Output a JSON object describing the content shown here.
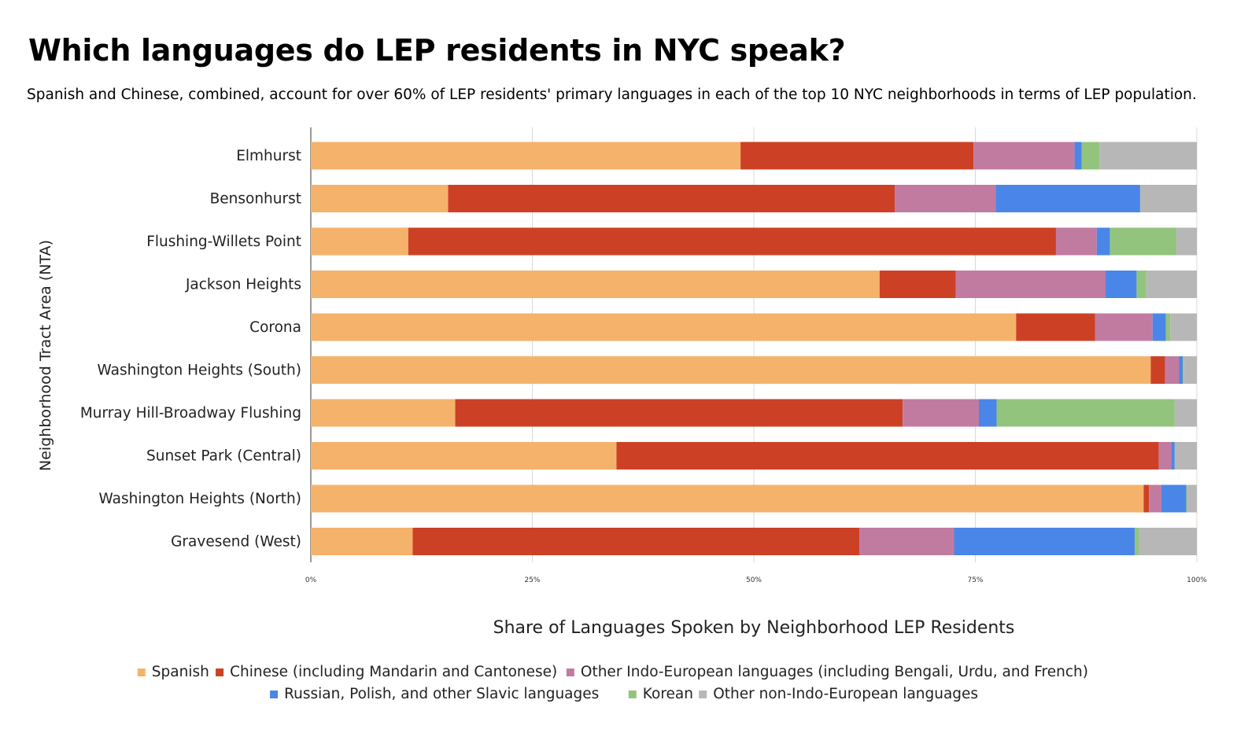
{
  "title": "Which languages do LEP residents in NYC speak?",
  "subtitle": "Spanish and Chinese, combined, account for over 60% of LEP residents' primary languages in each of the top 10 NYC neighborhoods in terms of LEP population.",
  "chart_data": {
    "type": "bar",
    "orientation": "horizontal",
    "stacked": "percent",
    "title": "Which languages do LEP residents in NYC speak?",
    "xlabel": "Share of Languages Spoken by Neighborhood LEP Residents",
    "ylabel": "Neighborhood Tract Area (NTA)",
    "xlim": [
      0,
      100
    ],
    "xticks": [
      "0%",
      "25%",
      "50%",
      "75%",
      "100%"
    ],
    "grid": true,
    "legend_position": "bottom",
    "categories": [
      "Elmhurst",
      "Bensonhurst",
      "Flushing-Willets Point",
      "Jackson Heights",
      "Corona",
      "Washington Heights (South)",
      "Murray Hill-Broadway Flushing",
      "Sunset Park (Central)",
      "Washington Heights (North)",
      "Gravesend (West)"
    ],
    "series": [
      {
        "name": "Spanish",
        "color": "#f5b26b",
        "values": [
          48.5,
          15.5,
          11.0,
          64.2,
          79.6,
          94.8,
          16.3,
          34.5,
          94.0,
          11.5
        ]
      },
      {
        "name": "Chinese (including Mandarin and Cantonese)",
        "color": "#cc4125",
        "values": [
          26.3,
          50.4,
          73.1,
          8.6,
          8.9,
          1.6,
          50.5,
          61.2,
          0.6,
          50.4
        ]
      },
      {
        "name": "Other Indo-European languages (including Bengali, Urdu, and French)",
        "color": "#c27ba0",
        "values": [
          11.4,
          11.4,
          4.6,
          16.9,
          6.5,
          1.6,
          8.6,
          1.4,
          1.4,
          10.7
        ]
      },
      {
        "name": "Russian, Polish, and other Slavic languages",
        "color": "#4a86e8",
        "values": [
          0.8,
          16.3,
          1.5,
          3.5,
          1.5,
          0.4,
          2.0,
          0.4,
          2.8,
          20.4
        ]
      },
      {
        "name": "Korean",
        "color": "#93c47d",
        "values": [
          2.0,
          0.0,
          7.5,
          1.1,
          0.5,
          0.1,
          20.1,
          0.0,
          0.1,
          0.5
        ]
      },
      {
        "name": "Other non-Indo-European languages",
        "color": "#b7b7b7",
        "values": [
          11.0,
          6.4,
          2.3,
          5.7,
          3.0,
          1.5,
          2.5,
          2.5,
          1.1,
          6.5
        ]
      }
    ]
  }
}
